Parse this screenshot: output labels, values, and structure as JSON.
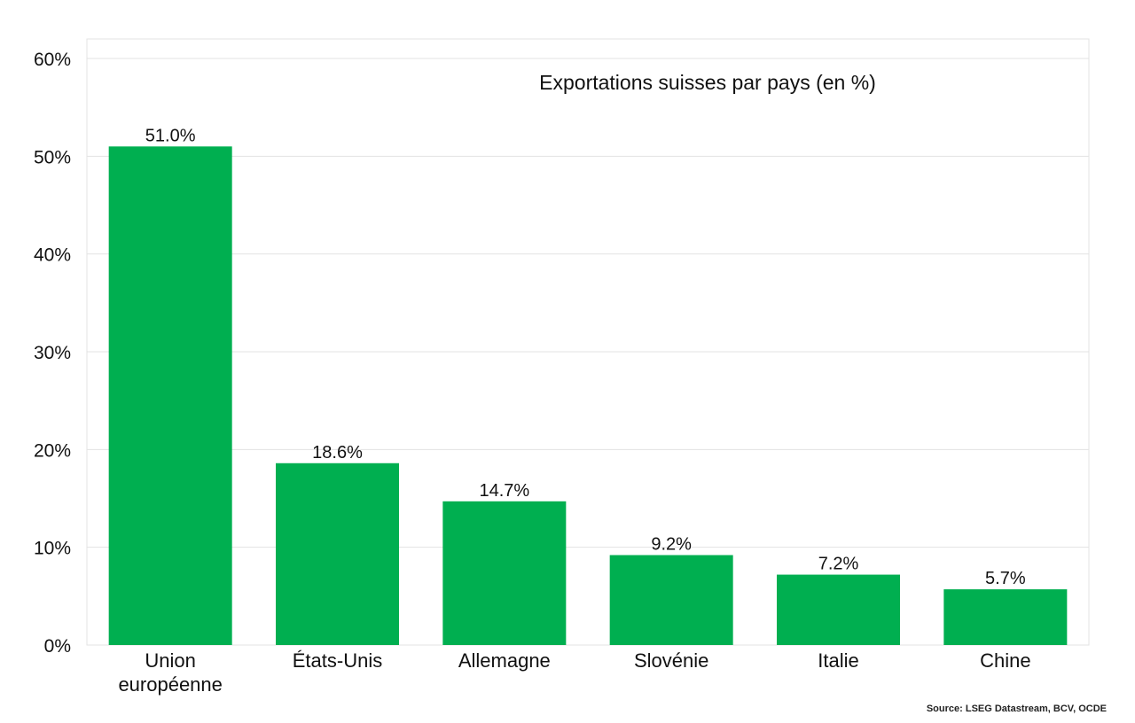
{
  "chart_data": {
    "type": "bar",
    "title": "Exportations suisses par pays (en %)",
    "categories": [
      "Union européenne",
      "États-Unis",
      "Allemagne",
      "Slovénie",
      "Italie",
      "Chine"
    ],
    "category_lines": [
      [
        "Union",
        "européenne"
      ],
      [
        "États-Unis"
      ],
      [
        "Allemagne"
      ],
      [
        "Slovénie"
      ],
      [
        "Italie"
      ],
      [
        "Chine"
      ]
    ],
    "values": [
      51.0,
      18.6,
      14.7,
      9.2,
      7.2,
      5.7
    ],
    "data_labels": [
      "51.0%",
      "18.6%",
      "14.7%",
      "9.2%",
      "7.2%",
      "5.7%"
    ],
    "ylim": [
      0,
      60
    ],
    "yticks": [
      0,
      10,
      20,
      30,
      40,
      50,
      60
    ],
    "ytick_labels": [
      "0%",
      "10%",
      "20%",
      "30%",
      "40%",
      "50%",
      "60%"
    ],
    "xlabel": "",
    "ylabel": "",
    "grid": true,
    "bar_color": "#00AF50",
    "grid_color": "#E3E3E3"
  },
  "footer": {
    "source": "Source: LSEG Datastream, BCV, OCDE"
  }
}
